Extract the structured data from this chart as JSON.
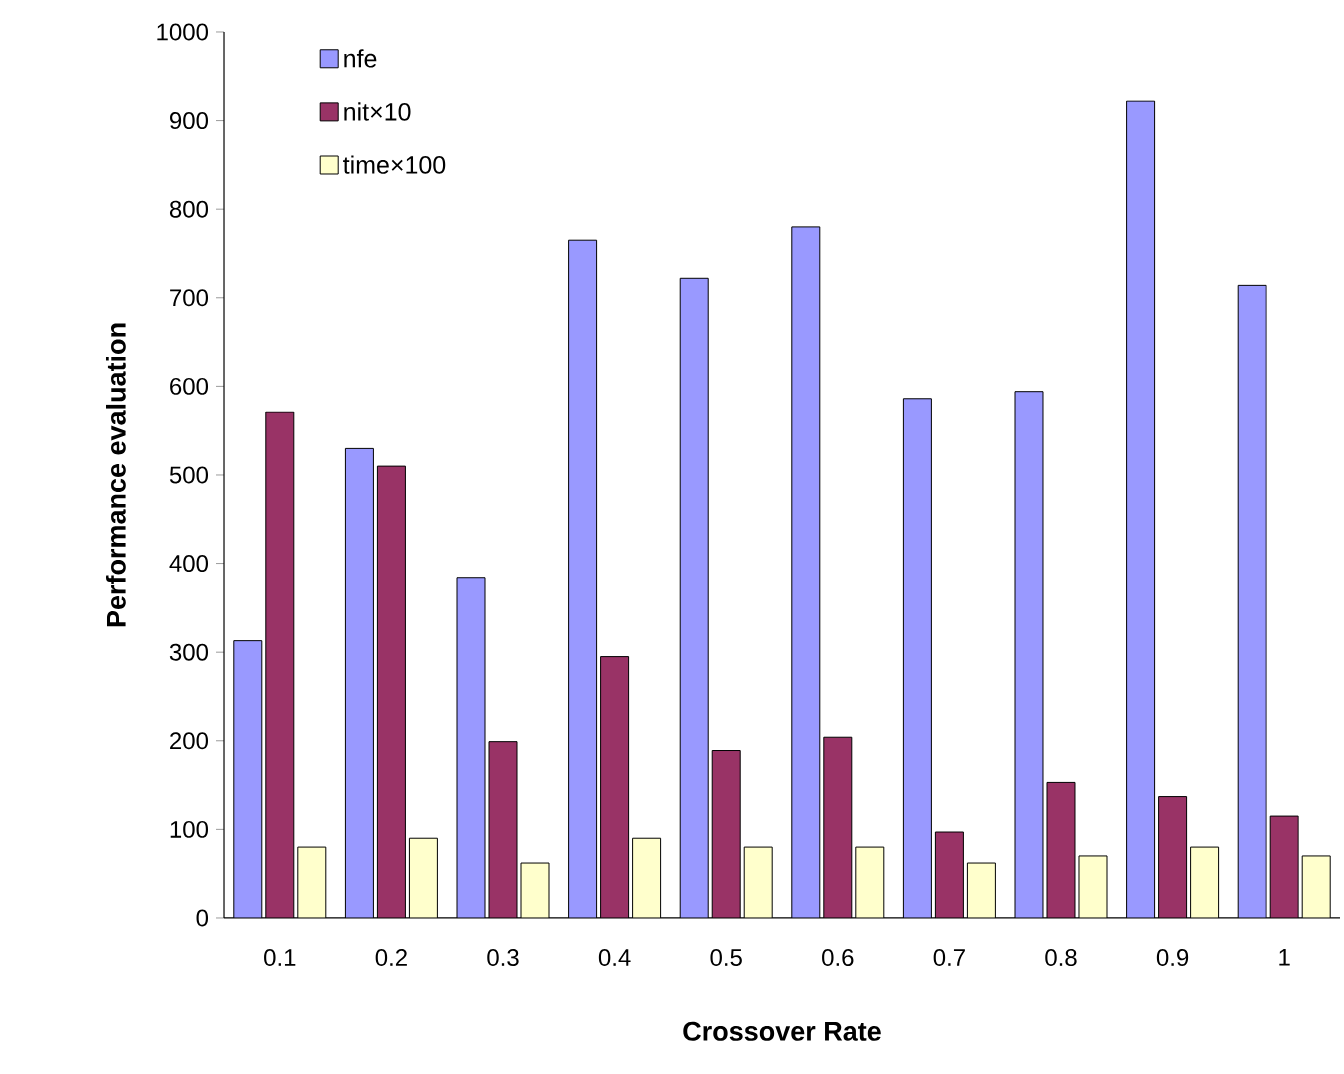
{
  "chart_data": {
    "type": "bar",
    "xlabel": "Crossover Rate",
    "ylabel": "Performance evaluation",
    "categories": [
      "0.1",
      "0.2",
      "0.3",
      "0.4",
      "0.5",
      "0.6",
      "0.7",
      "0.8",
      "0.9",
      "1"
    ],
    "series": [
      {
        "name": "nfe",
        "color": "#9999ff",
        "values": [
          313,
          530,
          384,
          765,
          722,
          780,
          586,
          594,
          922,
          714
        ]
      },
      {
        "name": "nit×10",
        "color": "#993366",
        "values": [
          571,
          510,
          199,
          295,
          189,
          204,
          97,
          153,
          137,
          115
        ]
      },
      {
        "name": "time×100",
        "color": "#ffffcc",
        "values": [
          80,
          90,
          62,
          90,
          80,
          80,
          62,
          70,
          80,
          70
        ]
      }
    ],
    "ylim": [
      0,
      1000
    ],
    "yticks": [
      0,
      100,
      200,
      300,
      400,
      500,
      600,
      700,
      800,
      900,
      1000
    ],
    "grid": false,
    "legend": "top left"
  }
}
